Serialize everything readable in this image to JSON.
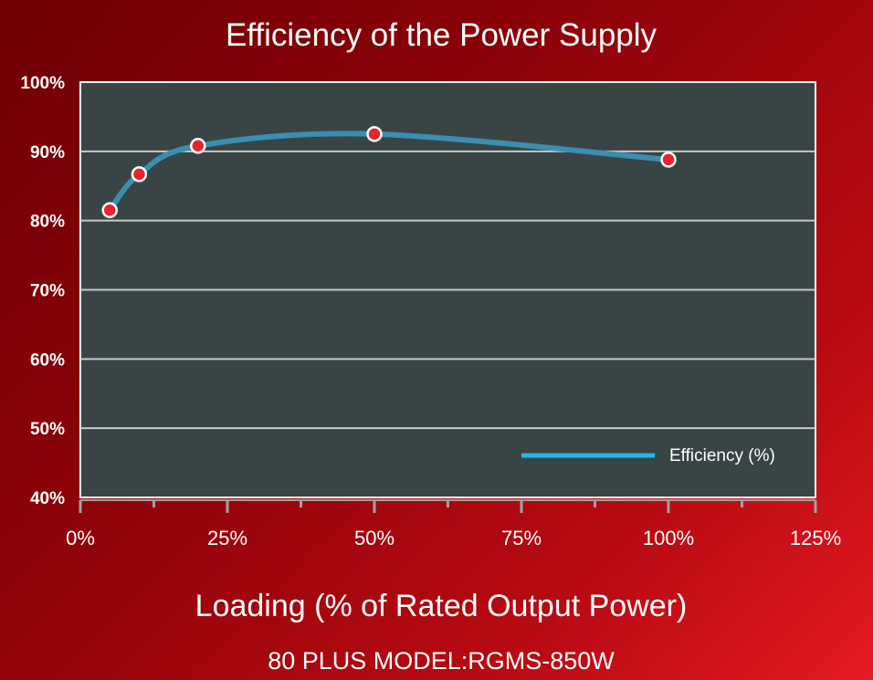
{
  "chart_data": {
    "type": "line",
    "title": "Efficiency of the Power Supply",
    "xlabel": "Loading (% of Rated Output Power)",
    "ylabel": "",
    "subtitle": "80 PLUS MODEL:RGMS-850W",
    "x_ticks": [
      "0%",
      "25%",
      "50%",
      "75%",
      "100%",
      "125%"
    ],
    "y_ticks": [
      "40%",
      "50%",
      "60%",
      "70%",
      "80%",
      "90%",
      "100%"
    ],
    "xlim": [
      0,
      125
    ],
    "ylim": [
      40,
      100
    ],
    "grid": true,
    "legend_position": "bottom-right",
    "series": [
      {
        "name": "Efficiency (%)",
        "color": "#3a8fb0",
        "legend_color": "#29b4e8",
        "x": [
          5,
          10,
          20,
          50,
          100
        ],
        "y": [
          81.5,
          86.7,
          90.8,
          92.5,
          88.8
        ]
      }
    ],
    "colors": {
      "plot_background": "#384544",
      "grid": "#c9c9c9",
      "marker_fill": "#e8232b",
      "marker_stroke": "#ffffff"
    }
  }
}
